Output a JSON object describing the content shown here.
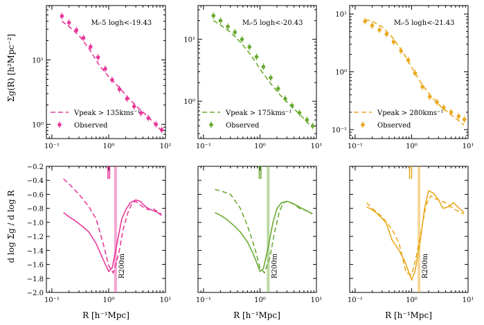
{
  "figure": {
    "ylabel_top": "Σg(R) [h²Mpc⁻²]",
    "ylabel_bottom": "d log Σg / d log R",
    "xlabel": "R [h⁻¹Mpc]",
    "r200m_label": "R200m",
    "observed_label": "Observed"
  },
  "chart_data": [
    {
      "type": "line",
      "panel": "top",
      "color": "#e8389a",
      "title": "Mᵢ-5 logh<-19.43",
      "xscale": "log",
      "yscale": "log",
      "xlim": [
        0.08,
        10
      ],
      "ylim": [
        0.6,
        70
      ],
      "xtick_labels": [
        "10⁻¹",
        "10⁰",
        "10¹"
      ],
      "ytick_labels": [
        "10⁰",
        "10¹"
      ],
      "model_label": "Vpeak > 135kms⁻¹",
      "model": {
        "x": [
          0.15,
          0.2,
          0.3,
          0.45,
          0.7,
          1.0,
          1.5,
          2.2,
          3.3,
          5,
          7,
          8.5
        ],
        "y": [
          40,
          33,
          24,
          15,
          8,
          5.5,
          3.8,
          2.6,
          1.8,
          1.3,
          0.95,
          0.8
        ]
      },
      "observed": {
        "x": [
          0.15,
          0.2,
          0.27,
          0.36,
          0.48,
          0.65,
          0.87,
          1.15,
          1.55,
          2.1,
          2.8,
          3.7,
          5,
          6.8,
          8.6
        ],
        "y": [
          48,
          38,
          29,
          22,
          16,
          11,
          7.3,
          4.9,
          3.5,
          2.5,
          1.9,
          1.5,
          1.25,
          1.0,
          0.82
        ]
      }
    },
    {
      "type": "line",
      "panel": "top",
      "color": "#6aaa32",
      "title": "Mᵢ-5 logh<-20.43",
      "xscale": "log",
      "yscale": "log",
      "xlim": [
        0.08,
        10
      ],
      "ylim": [
        0.25,
        35
      ],
      "xtick_labels": [
        "10⁻¹",
        "10⁰",
        "10¹"
      ],
      "ytick_labels": [
        "10⁰",
        "10¹"
      ],
      "model_label": "Vpeak > 175kms⁻¹",
      "model": {
        "x": [
          0.15,
          0.2,
          0.3,
          0.45,
          0.7,
          1.0,
          1.5,
          2.2,
          3.3,
          5,
          7,
          8.5
        ],
        "y": [
          20,
          17,
          13,
          9,
          5.5,
          3.3,
          2.0,
          1.3,
          0.9,
          0.62,
          0.45,
          0.38
        ]
      },
      "observed": {
        "x": [
          0.15,
          0.2,
          0.27,
          0.36,
          0.48,
          0.65,
          0.87,
          1.15,
          1.55,
          2.1,
          2.8,
          3.7,
          5,
          6.8,
          8.6
        ],
        "y": [
          24,
          20,
          16,
          13,
          10,
          7.5,
          5.2,
          3.6,
          2.4,
          1.6,
          1.1,
          0.85,
          0.65,
          0.5,
          0.4
        ]
      }
    },
    {
      "type": "line",
      "panel": "top",
      "color": "#e9a91f",
      "title": "Mᵢ-5 logh<-21.43",
      "xscale": "log",
      "yscale": "log",
      "xlim": [
        0.08,
        10
      ],
      "ylim": [
        0.07,
        14
      ],
      "xtick_labels": [
        "10⁻¹",
        "10⁰",
        "10¹"
      ],
      "ytick_labels": [
        "10⁻¹",
        "10⁰",
        "10¹"
      ],
      "model_label": "Vpeak > 280kms⁻¹",
      "model": {
        "x": [
          0.15,
          0.2,
          0.3,
          0.45,
          0.7,
          1.0,
          1.5,
          2.2,
          3.3,
          5,
          7,
          8.5
        ],
        "y": [
          8,
          7.5,
          6,
          4,
          2.2,
          1.2,
          0.62,
          0.38,
          0.25,
          0.18,
          0.14,
          0.12
        ]
      },
      "observed": {
        "x": [
          0.15,
          0.2,
          0.27,
          0.36,
          0.48,
          0.65,
          0.87,
          1.15,
          1.55,
          2.1,
          2.8,
          3.7,
          5,
          6.8,
          8.6
        ],
        "y": [
          7.5,
          6.3,
          5.3,
          4.5,
          3.3,
          2.3,
          1.6,
          0.95,
          0.55,
          0.37,
          0.3,
          0.24,
          0.2,
          0.17,
          0.15
        ]
      }
    },
    {
      "type": "line",
      "panel": "bottom",
      "color": "#e8389a",
      "xscale": "log",
      "xlim": [
        0.08,
        10
      ],
      "ylim": [
        -2.0,
        -0.2
      ],
      "xtick_labels": [
        "10⁻¹",
        "10⁰",
        "10¹"
      ],
      "ytick_values": [
        -2.0,
        -1.8,
        -1.6,
        -1.4,
        -1.2,
        -1.0,
        -0.8,
        -0.6,
        -0.4,
        -0.2
      ],
      "ytick_labels": [
        "−2.0",
        "−1.8",
        "−1.6",
        "−1.4",
        "−1.2",
        "−1.0",
        "−0.8",
        "−0.6",
        "−0.4",
        "−0.2"
      ],
      "r200m": 1.32,
      "obs_marker": [
        0.97,
        1.04
      ],
      "obs_marker_yrange": [
        -0.2,
        -0.38
      ],
      "model": {
        "x": [
          0.16,
          0.2,
          0.3,
          0.45,
          0.6,
          0.8,
          1.0,
          1.2,
          1.5,
          1.8,
          2.2,
          2.6,
          3.0,
          4,
          5,
          6,
          7.5,
          8.5
        ],
        "y": [
          -0.38,
          -0.45,
          -0.6,
          -0.78,
          -0.95,
          -1.3,
          -1.62,
          -1.72,
          -1.45,
          -1.1,
          -0.85,
          -0.72,
          -0.7,
          -0.78,
          -0.82,
          -0.8,
          -0.86,
          -0.88
        ]
      },
      "observed": {
        "x": [
          0.16,
          0.2,
          0.25,
          0.35,
          0.45,
          0.6,
          0.75,
          0.9,
          1.0,
          1.15,
          1.4,
          1.7,
          2.0,
          2.4,
          3.0,
          3.6,
          4.5,
          5.5,
          7,
          8.5
        ],
        "y": [
          -0.86,
          -0.92,
          -0.97,
          -1.06,
          -1.14,
          -1.3,
          -1.48,
          -1.62,
          -1.7,
          -1.65,
          -1.3,
          -0.95,
          -0.82,
          -0.72,
          -0.68,
          -0.7,
          -0.78,
          -0.82,
          -0.85,
          -0.9
        ]
      }
    },
    {
      "type": "line",
      "panel": "bottom",
      "color": "#6aaa32",
      "xscale": "log",
      "xlim": [
        0.08,
        10
      ],
      "ylim": [
        -2.0,
        -0.2
      ],
      "xtick_labels": [
        "10⁻¹",
        "10⁰",
        "10¹"
      ],
      "r200m": 1.4,
      "obs_marker": [
        0.97,
        1.04
      ],
      "obs_marker_yrange": [
        -0.2,
        -0.38
      ],
      "model": {
        "x": [
          0.16,
          0.2,
          0.3,
          0.45,
          0.6,
          0.8,
          1.0,
          1.2,
          1.5,
          1.8,
          2.2,
          2.6,
          3.0,
          4,
          5,
          6,
          7.5,
          8.5
        ],
        "y": [
          -0.53,
          -0.55,
          -0.6,
          -0.8,
          -1.05,
          -1.35,
          -1.65,
          -1.72,
          -1.5,
          -1.15,
          -0.85,
          -0.72,
          -0.7,
          -0.74,
          -0.8,
          -0.82,
          -0.85,
          -0.88
        ]
      },
      "observed": {
        "x": [
          0.16,
          0.2,
          0.25,
          0.35,
          0.45,
          0.6,
          0.75,
          0.9,
          1.0,
          1.15,
          1.4,
          1.7,
          2.0,
          2.4,
          3.0,
          3.6,
          4.5,
          5.5,
          7,
          8.5
        ],
        "y": [
          -0.86,
          -0.9,
          -0.95,
          -1.05,
          -1.14,
          -1.28,
          -1.44,
          -1.6,
          -1.7,
          -1.66,
          -1.35,
          -1.0,
          -0.8,
          -0.72,
          -0.7,
          -0.72,
          -0.76,
          -0.8,
          -0.84,
          -0.88
        ]
      }
    },
    {
      "type": "line",
      "panel": "bottom",
      "color": "#e9a91f",
      "xscale": "log",
      "xlim": [
        0.08,
        10
      ],
      "ylim": [
        -2.0,
        -0.2
      ],
      "xtick_labels": [
        "10⁻¹",
        "10⁰",
        "10¹"
      ],
      "r200m": 1.35,
      "obs_marker": [
        0.92,
        1.0
      ],
      "obs_marker_yrange": [
        -0.2,
        -0.38
      ],
      "model": {
        "x": [
          0.16,
          0.2,
          0.3,
          0.45,
          0.6,
          0.8,
          1.0,
          1.2,
          1.5,
          1.8,
          2.2,
          2.6,
          3.0,
          4,
          5,
          6,
          7.5,
          8.5
        ],
        "y": [
          -0.72,
          -0.8,
          -0.92,
          -1.1,
          -1.3,
          -1.72,
          -1.75,
          -1.5,
          -1.1,
          -0.75,
          -0.62,
          -0.66,
          -0.68,
          -0.72,
          -0.78,
          -0.82,
          -0.86,
          -0.88
        ]
      },
      "observed": {
        "x": [
          0.16,
          0.2,
          0.25,
          0.35,
          0.45,
          0.6,
          0.75,
          0.9,
          1.0,
          1.15,
          1.4,
          1.7,
          2.0,
          2.4,
          3.0,
          3.6,
          4.5,
          5.5,
          7,
          8.5
        ],
        "y": [
          -0.78,
          -0.82,
          -0.88,
          -1.0,
          -1.25,
          -1.4,
          -1.55,
          -1.72,
          -1.82,
          -1.7,
          -1.3,
          -0.8,
          -0.55,
          -0.58,
          -0.68,
          -0.8,
          -0.78,
          -0.72,
          -0.8,
          -0.86
        ]
      }
    }
  ]
}
